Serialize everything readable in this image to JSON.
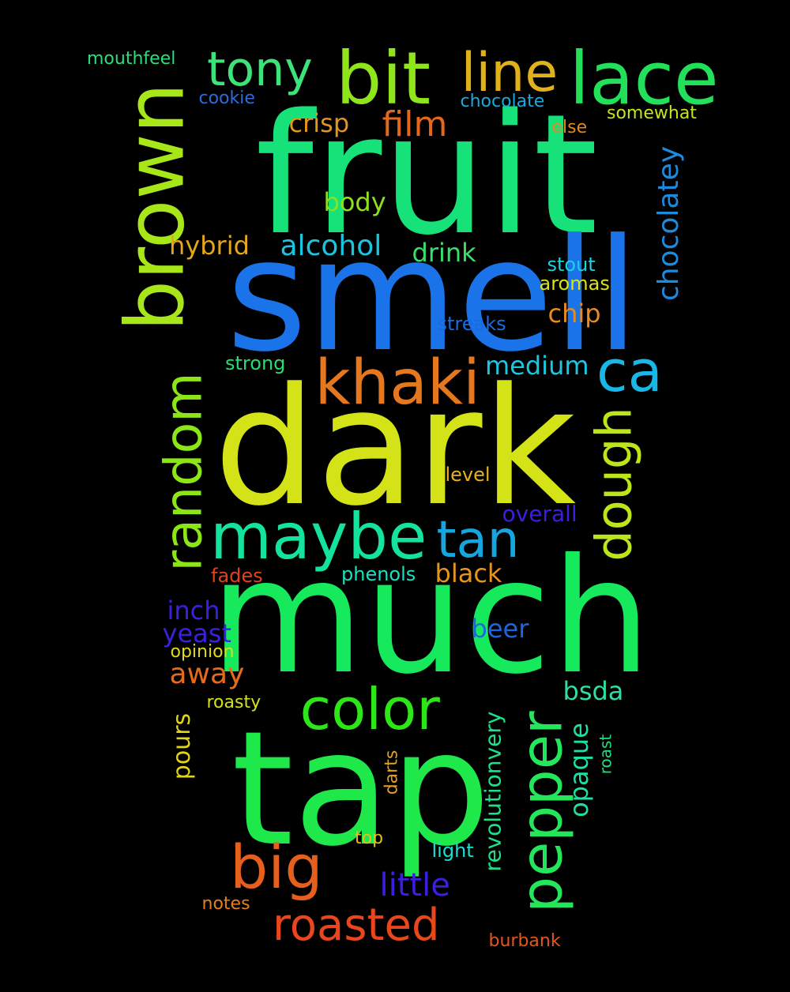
{
  "background": "#000000",
  "words": [
    {
      "text": "fruit",
      "color": "#17e27a"
    },
    {
      "text": "smell",
      "color": "#1a73e8"
    },
    {
      "text": "dark",
      "color": "#d4e317"
    },
    {
      "text": "much",
      "color": "#16ea5c"
    },
    {
      "text": "tap",
      "color": "#1ee84a"
    },
    {
      "text": "brown",
      "color": "#a7e619"
    },
    {
      "text": "bit",
      "color": "#8ee51b"
    },
    {
      "text": "lace",
      "color": "#22e05a"
    },
    {
      "text": "line",
      "color": "#e1b11c"
    },
    {
      "text": "tony",
      "color": "#3de27b"
    },
    {
      "text": "khaki",
      "color": "#e5771e"
    },
    {
      "text": "ca",
      "color": "#19b7e6"
    },
    {
      "text": "random",
      "color": "#8ce617"
    },
    {
      "text": "maybe",
      "color": "#14e3a0"
    },
    {
      "text": "tan",
      "color": "#14a7df"
    },
    {
      "text": "dough",
      "color": "#bde61a"
    },
    {
      "text": "color",
      "color": "#2ce617"
    },
    {
      "text": "pepper",
      "color": "#24e65b"
    },
    {
      "text": "big",
      "color": "#e5601c"
    },
    {
      "text": "roasted",
      "color": "#e8461c"
    },
    {
      "text": "film",
      "color": "#e5671c"
    },
    {
      "text": "crisp",
      "color": "#e5951c"
    },
    {
      "text": "mouthfeel",
      "color": "#2ddc7a"
    },
    {
      "text": "cookie",
      "color": "#2b6bdb"
    },
    {
      "text": "chocolate",
      "color": "#1aa9dc"
    },
    {
      "text": "somewhat",
      "color": "#c5e41a"
    },
    {
      "text": "else",
      "color": "#e5861c"
    },
    {
      "text": "chocolatey",
      "color": "#1b8be0"
    },
    {
      "text": "body",
      "color": "#8fe01c"
    },
    {
      "text": "hybrid",
      "color": "#e5a51c"
    },
    {
      "text": "alcohol",
      "color": "#19c6e0"
    },
    {
      "text": "drink",
      "color": "#38e06a"
    },
    {
      "text": "stout",
      "color": "#1ad3e0"
    },
    {
      "text": "aromas",
      "color": "#dce01a"
    },
    {
      "text": "chip",
      "color": "#e88c1c"
    },
    {
      "text": "streaks",
      "color": "#1a6be0"
    },
    {
      "text": "strong",
      "color": "#25de6d"
    },
    {
      "text": "medium",
      "color": "#1ac8e0"
    },
    {
      "text": "level",
      "color": "#e5b11c"
    },
    {
      "text": "overall",
      "color": "#3b1fe0"
    },
    {
      "text": "fades",
      "color": "#e5401c"
    },
    {
      "text": "phenols",
      "color": "#1ae0c0"
    },
    {
      "text": "black",
      "color": "#e5951c"
    },
    {
      "text": "inch",
      "color": "#3a20e0"
    },
    {
      "text": "yeast",
      "color": "#3a20e0"
    },
    {
      "text": "opinion",
      "color": "#e0da1a"
    },
    {
      "text": "beer",
      "color": "#1b66e0"
    },
    {
      "text": "away",
      "color": "#e56a1c"
    },
    {
      "text": "bsda",
      "color": "#2de0a0"
    },
    {
      "text": "roasty",
      "color": "#d6e01a"
    },
    {
      "text": "pours",
      "color": "#e0d41a"
    },
    {
      "text": "revolutionvery",
      "color": "#1ee08a"
    },
    {
      "text": "opaque",
      "color": "#1ee0a4"
    },
    {
      "text": "darts",
      "color": "#e5a01c"
    },
    {
      "text": "roast",
      "color": "#1ee07c"
    },
    {
      "text": "top",
      "color": "#e0c01a"
    },
    {
      "text": "light",
      "color": "#1ae0d0"
    },
    {
      "text": "little",
      "color": "#3a1fe0"
    },
    {
      "text": "notes",
      "color": "#e5801c"
    },
    {
      "text": "burbank",
      "color": "#e5561c"
    }
  ]
}
